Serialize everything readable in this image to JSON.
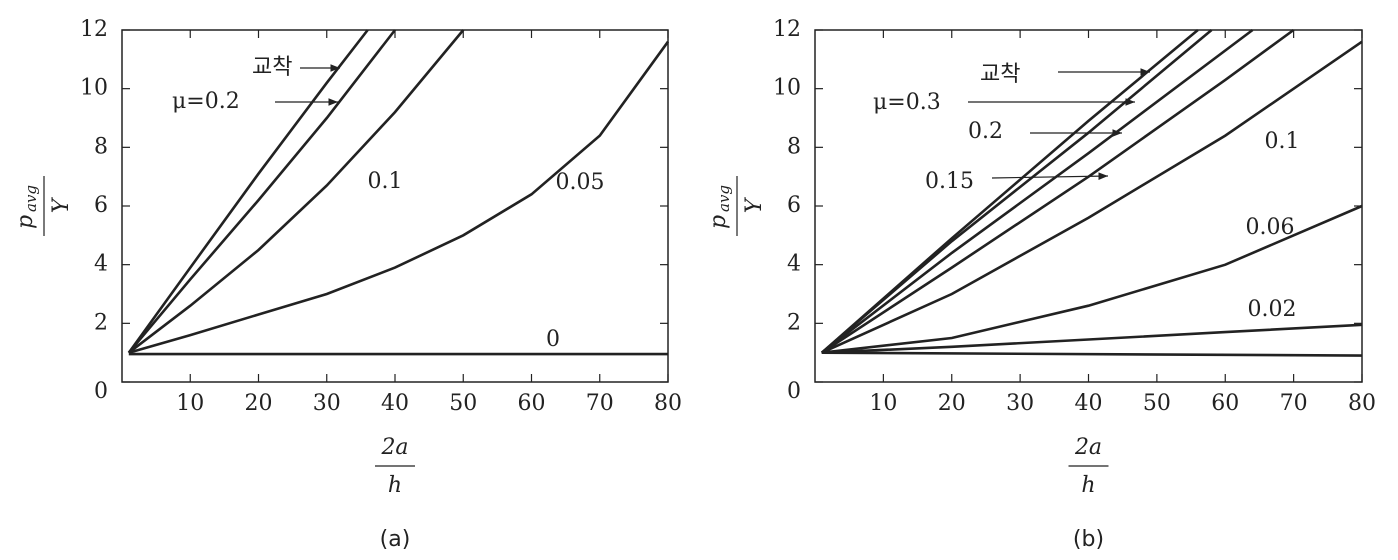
{
  "chart_data": [
    {
      "type": "line",
      "caption": "(a)",
      "xlabel_numerator": "2a",
      "xlabel_denominator": "h",
      "ylabel_numerator": "p",
      "ylabel_subscript": "avg",
      "ylabel_denominator": "Y",
      "xlim": [
        0,
        80
      ],
      "ylim": [
        0,
        12
      ],
      "xticks": [
        10,
        20,
        30,
        40,
        50,
        60,
        70,
        80
      ],
      "yticks": [
        0,
        2,
        4,
        6,
        8,
        10,
        12
      ],
      "series": [
        {
          "name": "교착",
          "color": "#222222",
          "x": [
            1,
            10,
            20,
            30,
            36
          ],
          "values": [
            1,
            3.9,
            7.1,
            10.2,
            12
          ]
        },
        {
          "name": "μ=0.2",
          "color": "#222222",
          "x": [
            1,
            10,
            20,
            30,
            40
          ],
          "values": [
            1,
            3.5,
            6.2,
            9.0,
            12
          ]
        },
        {
          "name": "0.1",
          "color": "#222222",
          "x": [
            1,
            10,
            20,
            30,
            40,
            50
          ],
          "values": [
            1,
            2.6,
            4.5,
            6.7,
            9.2,
            12
          ]
        },
        {
          "name": "0.05",
          "color": "#222222",
          "x": [
            1,
            10,
            20,
            30,
            40,
            50,
            60,
            70,
            80
          ],
          "values": [
            1,
            1.6,
            2.3,
            3.0,
            3.9,
            5.0,
            6.4,
            8.4,
            11.6
          ]
        },
        {
          "name": "0",
          "color": "#222222",
          "x": [
            1,
            80
          ],
          "values": [
            0.95,
            0.95
          ]
        }
      ]
    },
    {
      "type": "line",
      "caption": "(b)",
      "xlabel_numerator": "2a",
      "xlabel_denominator": "h",
      "ylabel_numerator": "p",
      "ylabel_subscript": "avg",
      "ylabel_denominator": "Y",
      "xlim": [
        0,
        80
      ],
      "ylim": [
        0,
        12
      ],
      "xticks": [
        10,
        20,
        30,
        40,
        50,
        60,
        70,
        80
      ],
      "yticks": [
        0,
        2,
        4,
        6,
        8,
        10,
        12
      ],
      "series": [
        {
          "name": "교착",
          "color": "#222222",
          "x": [
            1,
            20,
            40,
            56
          ],
          "values": [
            1,
            4.9,
            8.9,
            12
          ]
        },
        {
          "name": "μ=0.3",
          "color": "#222222",
          "x": [
            1,
            20,
            40,
            58
          ],
          "values": [
            1,
            4.8,
            8.5,
            12
          ]
        },
        {
          "name": "0.2",
          "color": "#222222",
          "x": [
            1,
            20,
            40,
            64
          ],
          "values": [
            1,
            4.4,
            7.8,
            12
          ]
        },
        {
          "name": "0.15",
          "color": "#222222",
          "x": [
            1,
            20,
            40,
            60,
            70
          ],
          "values": [
            1,
            3.9,
            7.0,
            10.3,
            12
          ]
        },
        {
          "name": "0.1",
          "color": "#222222",
          "x": [
            1,
            20,
            40,
            60,
            80
          ],
          "values": [
            1,
            3.0,
            5.6,
            8.4,
            11.6
          ]
        },
        {
          "name": "0.06",
          "color": "#222222",
          "x": [
            1,
            20,
            40,
            60,
            80
          ],
          "values": [
            1,
            1.5,
            2.6,
            4.0,
            6.0
          ]
        },
        {
          "name": "0.02",
          "color": "#222222",
          "x": [
            1,
            20,
            40,
            60,
            80
          ],
          "values": [
            1,
            1.2,
            1.45,
            1.7,
            1.95
          ]
        },
        {
          "color": "#222222",
          "x": [
            1,
            80
          ],
          "values": [
            1,
            0.9
          ]
        }
      ]
    }
  ]
}
